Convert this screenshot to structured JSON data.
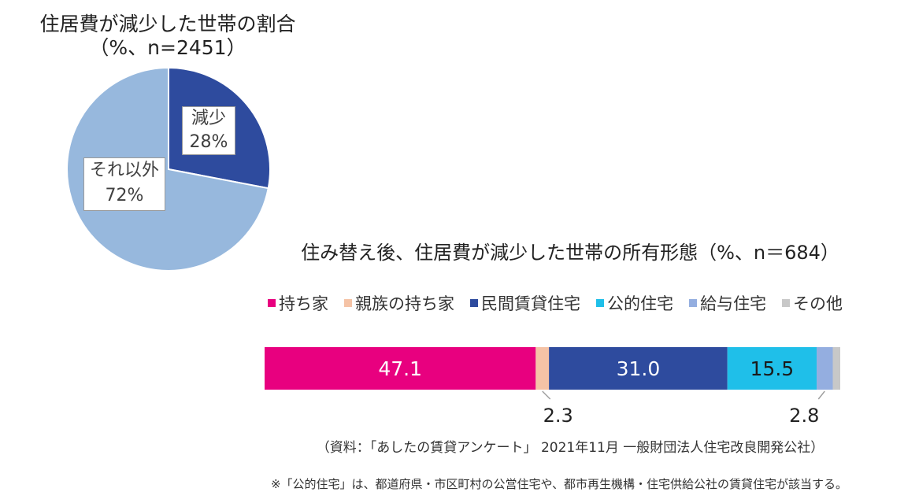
{
  "chart_data": [
    {
      "type": "pie",
      "title": "住居費が減少した世帯の割合",
      "subtitle": "（%、n=2451）",
      "slices": [
        {
          "label": "減少",
          "value": 28,
          "display": "28%",
          "color": "#2e4b9e"
        },
        {
          "label": "それ以外",
          "value": 72,
          "display": "72%",
          "color": "#97b8dd"
        }
      ]
    },
    {
      "type": "bar",
      "stacked": true,
      "orientation": "horizontal",
      "title": "住み替え後、住居費が減少した世帯の所有形態（%、n＝684）",
      "legend_position": "top",
      "series": [
        {
          "name": "持ち家",
          "value": 47.1,
          "label": "47.1",
          "color": "#e8007f"
        },
        {
          "name": "親族の持ち家",
          "value": 2.3,
          "label": "2.3",
          "color": "#f5c3a6"
        },
        {
          "name": "民間賃貸住宅",
          "value": 31.0,
          "label": "31.0",
          "color": "#2e4b9e"
        },
        {
          "name": "公的住宅",
          "value": 15.5,
          "label": "15.5",
          "color": "#1fbfe9"
        },
        {
          "name": "給与住宅",
          "value": 2.8,
          "label": "2.8",
          "color": "#94aee0"
        },
        {
          "name": "その他",
          "value": 1.3,
          "label": "",
          "color": "#c8c8c8"
        }
      ]
    }
  ],
  "source": "（資料：「あしたの賃貸アンケート」 2021年11月 一般財団法人住宅改良開発公社）",
  "note": "※「公的住宅」は、都道府県・市区町村の公営住宅や、都市再生機構・住宅供給公社の賃貸住宅が該当する。"
}
